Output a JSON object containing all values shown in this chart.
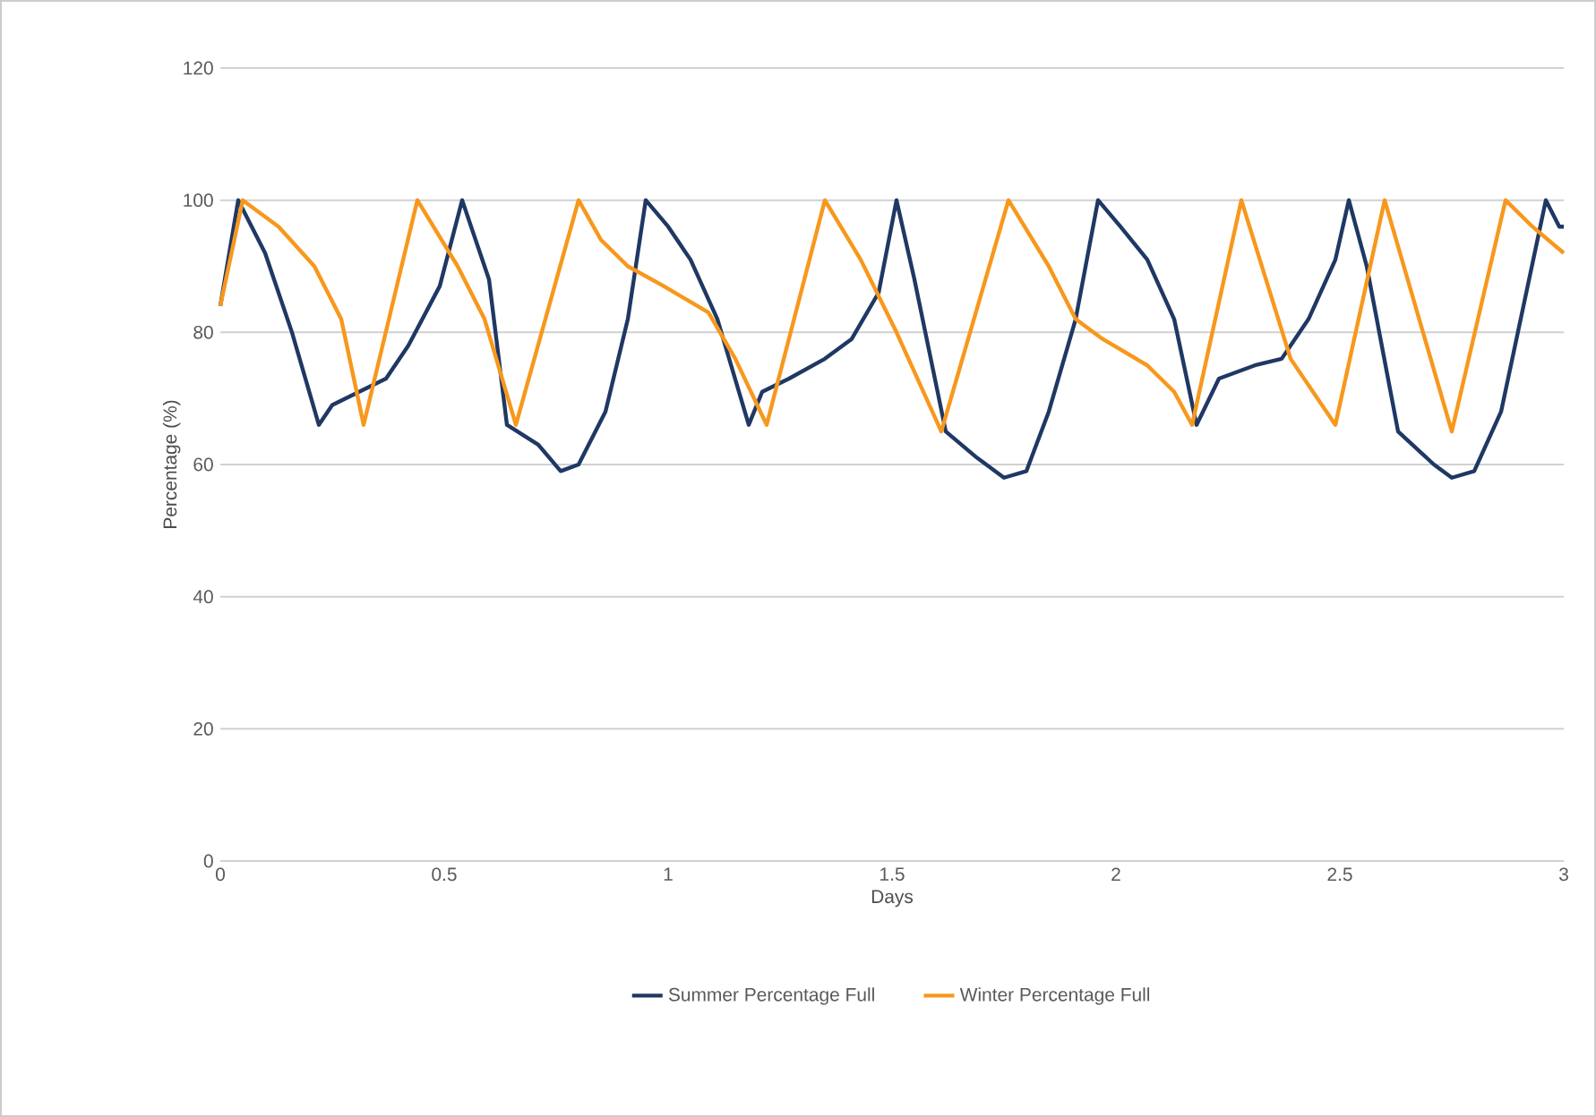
{
  "chart_data": {
    "type": "line",
    "xlabel": "Days",
    "ylabel": "Percentage (%)",
    "xlim": [
      0,
      3
    ],
    "ylim": [
      0,
      120
    ],
    "xticks": [
      0,
      0.5,
      1,
      1.5,
      2,
      2.5,
      3
    ],
    "yticks": [
      0,
      20,
      40,
      60,
      80,
      100,
      120
    ],
    "grid": "y",
    "legend": "bottom",
    "marker": "none",
    "line_style": "solid",
    "series": [
      {
        "name": "Summer Percentage Full",
        "color": "#1f3864",
        "x": [
          0,
          0.04,
          0.1,
          0.16,
          0.22,
          0.25,
          0.31,
          0.37,
          0.42,
          0.49,
          0.54,
          0.6,
          0.64,
          0.71,
          0.76,
          0.8,
          0.86,
          0.91,
          0.95,
          1.0,
          1.05,
          1.11,
          1.18,
          1.21,
          1.27,
          1.35,
          1.41,
          1.47,
          1.51,
          1.55,
          1.62,
          1.69,
          1.75,
          1.8,
          1.85,
          1.91,
          1.96,
          2.01,
          2.07,
          2.13,
          2.18,
          2.23,
          2.31,
          2.37,
          2.43,
          2.49,
          2.52,
          2.56,
          2.63,
          2.71,
          2.75,
          2.8,
          2.86,
          2.91,
          2.96,
          2.99,
          3.0
        ],
        "values": [
          84,
          100,
          92,
          80,
          66,
          69,
          71,
          73,
          78,
          87,
          100,
          88,
          66,
          63,
          59,
          60,
          68,
          82,
          100,
          96,
          91,
          82,
          66,
          71,
          73,
          76,
          79,
          86,
          100,
          88,
          65,
          61,
          58,
          59,
          68,
          82,
          100,
          96,
          91,
          82,
          66,
          73,
          75,
          76,
          82,
          91,
          100,
          90,
          65,
          60,
          58,
          59,
          68,
          84,
          100,
          96,
          96
        ]
      },
      {
        "name": "Winter Percentage Full",
        "color": "#f7981d",
        "x": [
          0,
          0.05,
          0.13,
          0.21,
          0.27,
          0.32,
          0.44,
          0.53,
          0.59,
          0.66,
          0.8,
          0.85,
          0.91,
          0.99,
          1.09,
          1.15,
          1.22,
          1.35,
          1.43,
          1.51,
          1.61,
          1.76,
          1.85,
          1.91,
          1.97,
          2.07,
          2.13,
          2.17,
          2.28,
          2.39,
          2.49,
          2.6,
          2.75,
          2.87,
          2.93,
          3.0
        ],
        "values": [
          84,
          100,
          96,
          90,
          82,
          66,
          100,
          90,
          82,
          66,
          100,
          94,
          90,
          87,
          83,
          76,
          66,
          100,
          91,
          80,
          65,
          100,
          90,
          82,
          79,
          75,
          71,
          66,
          100,
          76,
          66,
          100,
          65,
          100,
          96,
          92
        ]
      }
    ]
  }
}
